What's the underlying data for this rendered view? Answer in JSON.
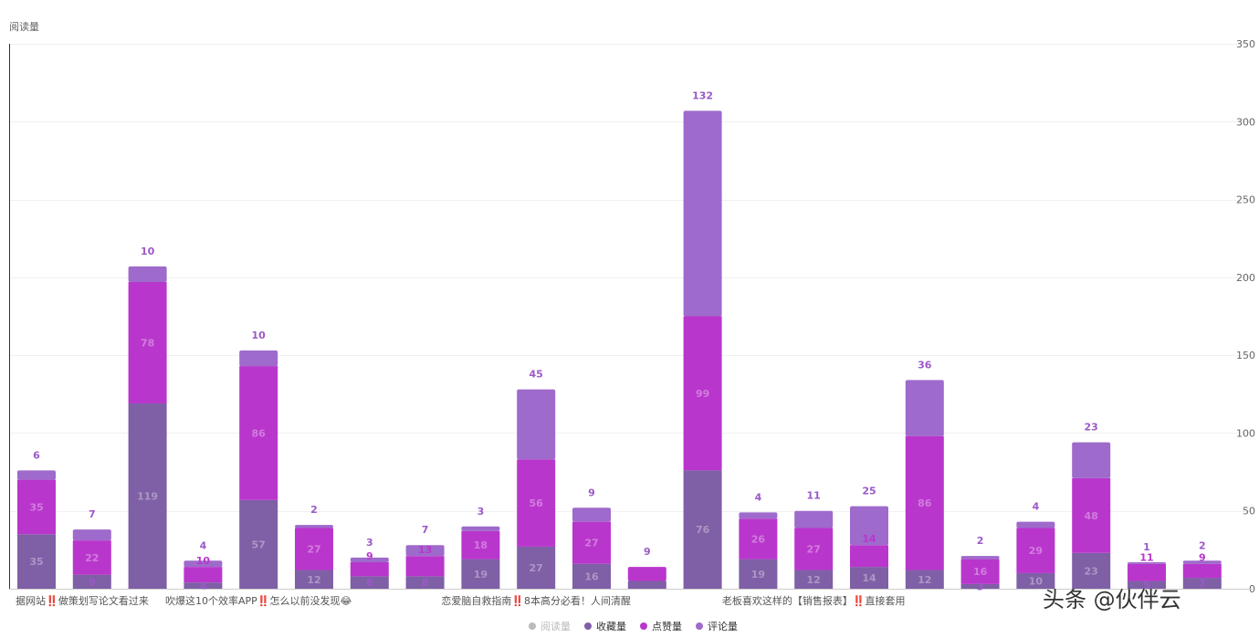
{
  "chart_data": {
    "type": "bar",
    "stacked": true,
    "ylabel": "阅读量",
    "ylim": [
      0,
      350
    ],
    "yticks": [
      0,
      50,
      100,
      150,
      200,
      250,
      300,
      350
    ],
    "grid": true,
    "legend_position": "bottom-center",
    "x_visible_labels": [
      {
        "index": 0,
        "text": "据网站‼️做策划写论文看过来"
      },
      {
        "index": 4,
        "text": "吹爆这10个效率APP‼️怎么以前没发现😂"
      },
      {
        "index": 9,
        "text": "恋爱脑自救指南‼️8本高分必看！人间清醒"
      },
      {
        "index": 14,
        "text": "老板喜欢这样的【销售报表】‼️直接套用"
      }
    ],
    "series": [
      {
        "name": "阅读量",
        "color": "#bbbbbb",
        "values": []
      },
      {
        "name": "收藏量",
        "color": "#7f5fa6",
        "values": [
          35,
          9,
          119,
          4,
          57,
          12,
          8,
          8,
          19,
          27,
          16,
          5,
          76,
          19,
          12,
          14,
          12,
          3,
          10,
          23,
          5,
          7
        ]
      },
      {
        "name": "点赞量",
        "color": "#b936cc",
        "values": [
          35,
          22,
          78,
          10,
          86,
          27,
          9,
          13,
          18,
          56,
          27,
          9,
          99,
          26,
          27,
          14,
          86,
          16,
          29,
          48,
          11,
          9
        ]
      },
      {
        "name": "评论量",
        "color": "#9e6acb",
        "values": [
          6,
          7,
          10,
          4,
          10,
          2,
          3,
          7,
          3,
          45,
          9,
          0,
          132,
          4,
          11,
          25,
          36,
          2,
          4,
          23,
          1,
          2
        ]
      }
    ]
  },
  "watermark": "头条 @伙伴云"
}
